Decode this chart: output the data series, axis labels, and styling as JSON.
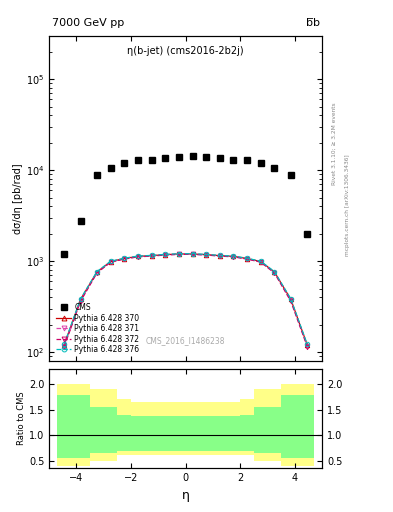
{
  "title_left": "7000 GeV pp",
  "title_right": "b̅b",
  "plot_title": "η(b-jet) (cms2016-2b2j)",
  "ylabel_main": "dσ/dη [pb/rad]",
  "ylabel_ratio": "Ratio to CMS",
  "xlabel": "η",
  "watermark": "CMS_2016_I1486238",
  "right_label": "Rivet 3.1.10; ≥ 3.2M events",
  "right_label2": "mcplots.cern.ch [arXiv:1306.3436]",
  "cms_eta_edges": [
    -4.7,
    -4.2,
    -3.5,
    -3.0,
    -2.5,
    -2.0,
    -1.5,
    -1.0,
    -0.5,
    0.0,
    0.5,
    1.0,
    1.5,
    2.0,
    2.5,
    3.0,
    3.5,
    4.2,
    4.7
  ],
  "cms_vals": [
    1200,
    2800,
    8800,
    10500,
    12000,
    13000,
    13000,
    13500,
    14000,
    14500,
    14000,
    13500,
    13000,
    13000,
    12000,
    10500,
    8800,
    2000
  ],
  "mc_eta_pts": [
    -4.45,
    -3.85,
    -3.25,
    -2.75,
    -2.25,
    -1.75,
    -1.25,
    -0.75,
    -0.25,
    0.25,
    0.75,
    1.25,
    1.75,
    2.25,
    2.75,
    3.25,
    3.85,
    4.45
  ],
  "mc370_vals": [
    120,
    380,
    760,
    990,
    1070,
    1130,
    1150,
    1180,
    1200,
    1200,
    1180,
    1150,
    1130,
    1070,
    990,
    760,
    380,
    120
  ],
  "mc371_vals": [
    118,
    370,
    748,
    980,
    1060,
    1120,
    1142,
    1172,
    1192,
    1192,
    1172,
    1142,
    1120,
    1060,
    980,
    748,
    370,
    118
  ],
  "mc372_vals": [
    115,
    362,
    742,
    975,
    1055,
    1115,
    1138,
    1168,
    1188,
    1188,
    1168,
    1138,
    1115,
    1055,
    975,
    742,
    362,
    115
  ],
  "mc376_vals": [
    122,
    385,
    768,
    998,
    1078,
    1138,
    1158,
    1188,
    1208,
    1208,
    1188,
    1158,
    1138,
    1078,
    998,
    768,
    385,
    122
  ],
  "ratio_edges": [
    -4.7,
    -3.5,
    -2.5,
    -2.0,
    -1.5,
    -1.0,
    -0.5,
    0.0,
    0.5,
    1.0,
    1.5,
    2.0,
    2.5,
    3.5,
    4.7
  ],
  "yellow_low": [
    0.4,
    0.5,
    0.62,
    0.62,
    0.62,
    0.62,
    0.62,
    0.62,
    0.62,
    0.62,
    0.62,
    0.62,
    0.5,
    0.4
  ],
  "yellow_high": [
    2.0,
    1.9,
    1.7,
    1.65,
    1.65,
    1.65,
    1.65,
    1.65,
    1.65,
    1.65,
    1.65,
    1.7,
    1.9,
    2.0
  ],
  "green_low": [
    0.55,
    0.65,
    0.7,
    0.7,
    0.7,
    0.7,
    0.7,
    0.7,
    0.7,
    0.7,
    0.7,
    0.7,
    0.65,
    0.55
  ],
  "green_high": [
    1.78,
    1.55,
    1.4,
    1.38,
    1.38,
    1.38,
    1.38,
    1.38,
    1.38,
    1.38,
    1.38,
    1.4,
    1.55,
    1.78
  ],
  "color_370": "#cc0000",
  "color_371": "#dd44aa",
  "color_372": "#cc0066",
  "color_376": "#00bbbb",
  "ylim_main": [
    80,
    300000
  ],
  "ylim_ratio": [
    0.35,
    2.3
  ],
  "yticks_ratio": [
    0.5,
    1.0,
    1.5,
    2.0
  ],
  "background_color": "#ffffff"
}
